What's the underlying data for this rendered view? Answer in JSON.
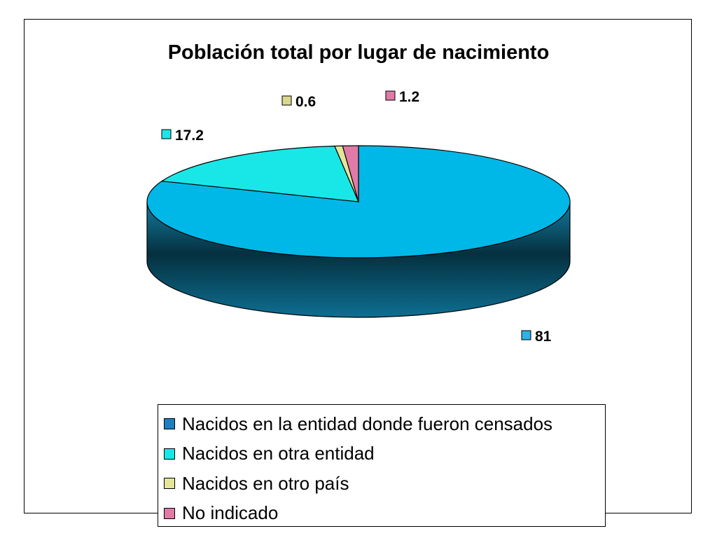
{
  "chart_data": {
    "type": "pie",
    "title": "Población total por lugar de nacimiento",
    "three_d": true,
    "legend_position": "bottom",
    "slices": [
      {
        "name": "Nacidos en la entidad donde fueron censados",
        "value": 81,
        "label": "81",
        "color": "#00B8E8"
      },
      {
        "name": "Nacidos en otra entidad",
        "value": 17.2,
        "label": "17.2",
        "color": "#19E6E6"
      },
      {
        "name": "Nacidos en otro país",
        "value": 0.6,
        "label": "0.6",
        "color": "#E4E49A"
      },
      {
        "name": "No indicado",
        "value": 1.2,
        "label": "1.2",
        "color": "#E07AA6"
      }
    ]
  },
  "legend_items": [
    {
      "label": "Nacidos en la entidad donde fueron censados",
      "color": "#1E7FC0"
    },
    {
      "label": "Nacidos en otra entidad",
      "color": "#19E6E6"
    },
    {
      "label": "Nacidos en otro país",
      "color": "#E4E49A"
    },
    {
      "label": "No indicado",
      "color": "#E07AA6"
    }
  ],
  "label_colors": [
    "#2DB2E6",
    "#19E6E6",
    "#D8D890",
    "#E07AA6"
  ]
}
